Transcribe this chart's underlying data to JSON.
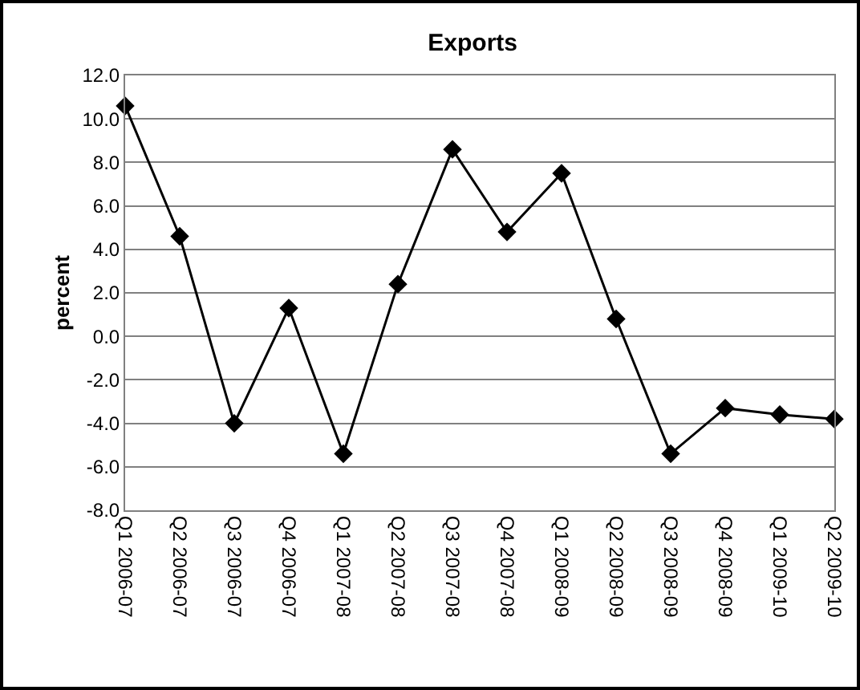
{
  "chart_data": {
    "type": "line",
    "title": "Exports",
    "ylabel": "percent",
    "categories": [
      "Q1 2006-07",
      "Q2 2006-07",
      "Q3 2006-07",
      "Q4 2006-07",
      "Q1 2007-08",
      "Q2 2007-08",
      "Q3 2007-08",
      "Q4 2007-08",
      "Q1 2008-09",
      "Q2 2008-09",
      "Q3 2008-09",
      "Q4 2008-09",
      "Q1 2009-10",
      "Q2 2009-10"
    ],
    "series": [
      {
        "color": "#000000",
        "values": [
          10.6,
          4.6,
          -4.0,
          1.3,
          -5.4,
          2.4,
          8.6,
          4.8,
          7.5,
          0.8,
          -5.4,
          -3.3,
          -3.6,
          -3.8
        ]
      }
    ],
    "ylim": [
      -8,
      12
    ],
    "yticks": [
      {
        "value": -8,
        "label": "-8.0"
      },
      {
        "value": -6,
        "label": "-6.0"
      },
      {
        "value": -4,
        "label": "-4.0"
      },
      {
        "value": -2,
        "label": "-2.0"
      },
      {
        "value": 0,
        "label": "0.0"
      },
      {
        "value": 2,
        "label": "2.0"
      },
      {
        "value": 4,
        "label": "4.0"
      },
      {
        "value": 6,
        "label": "6.0"
      },
      {
        "value": 8,
        "label": "8.0"
      },
      {
        "value": 10,
        "label": "10.0"
      },
      {
        "value": 12,
        "label": "12.0"
      }
    ],
    "grid": "y",
    "marker": "diamond",
    "line_style": "solid"
  }
}
